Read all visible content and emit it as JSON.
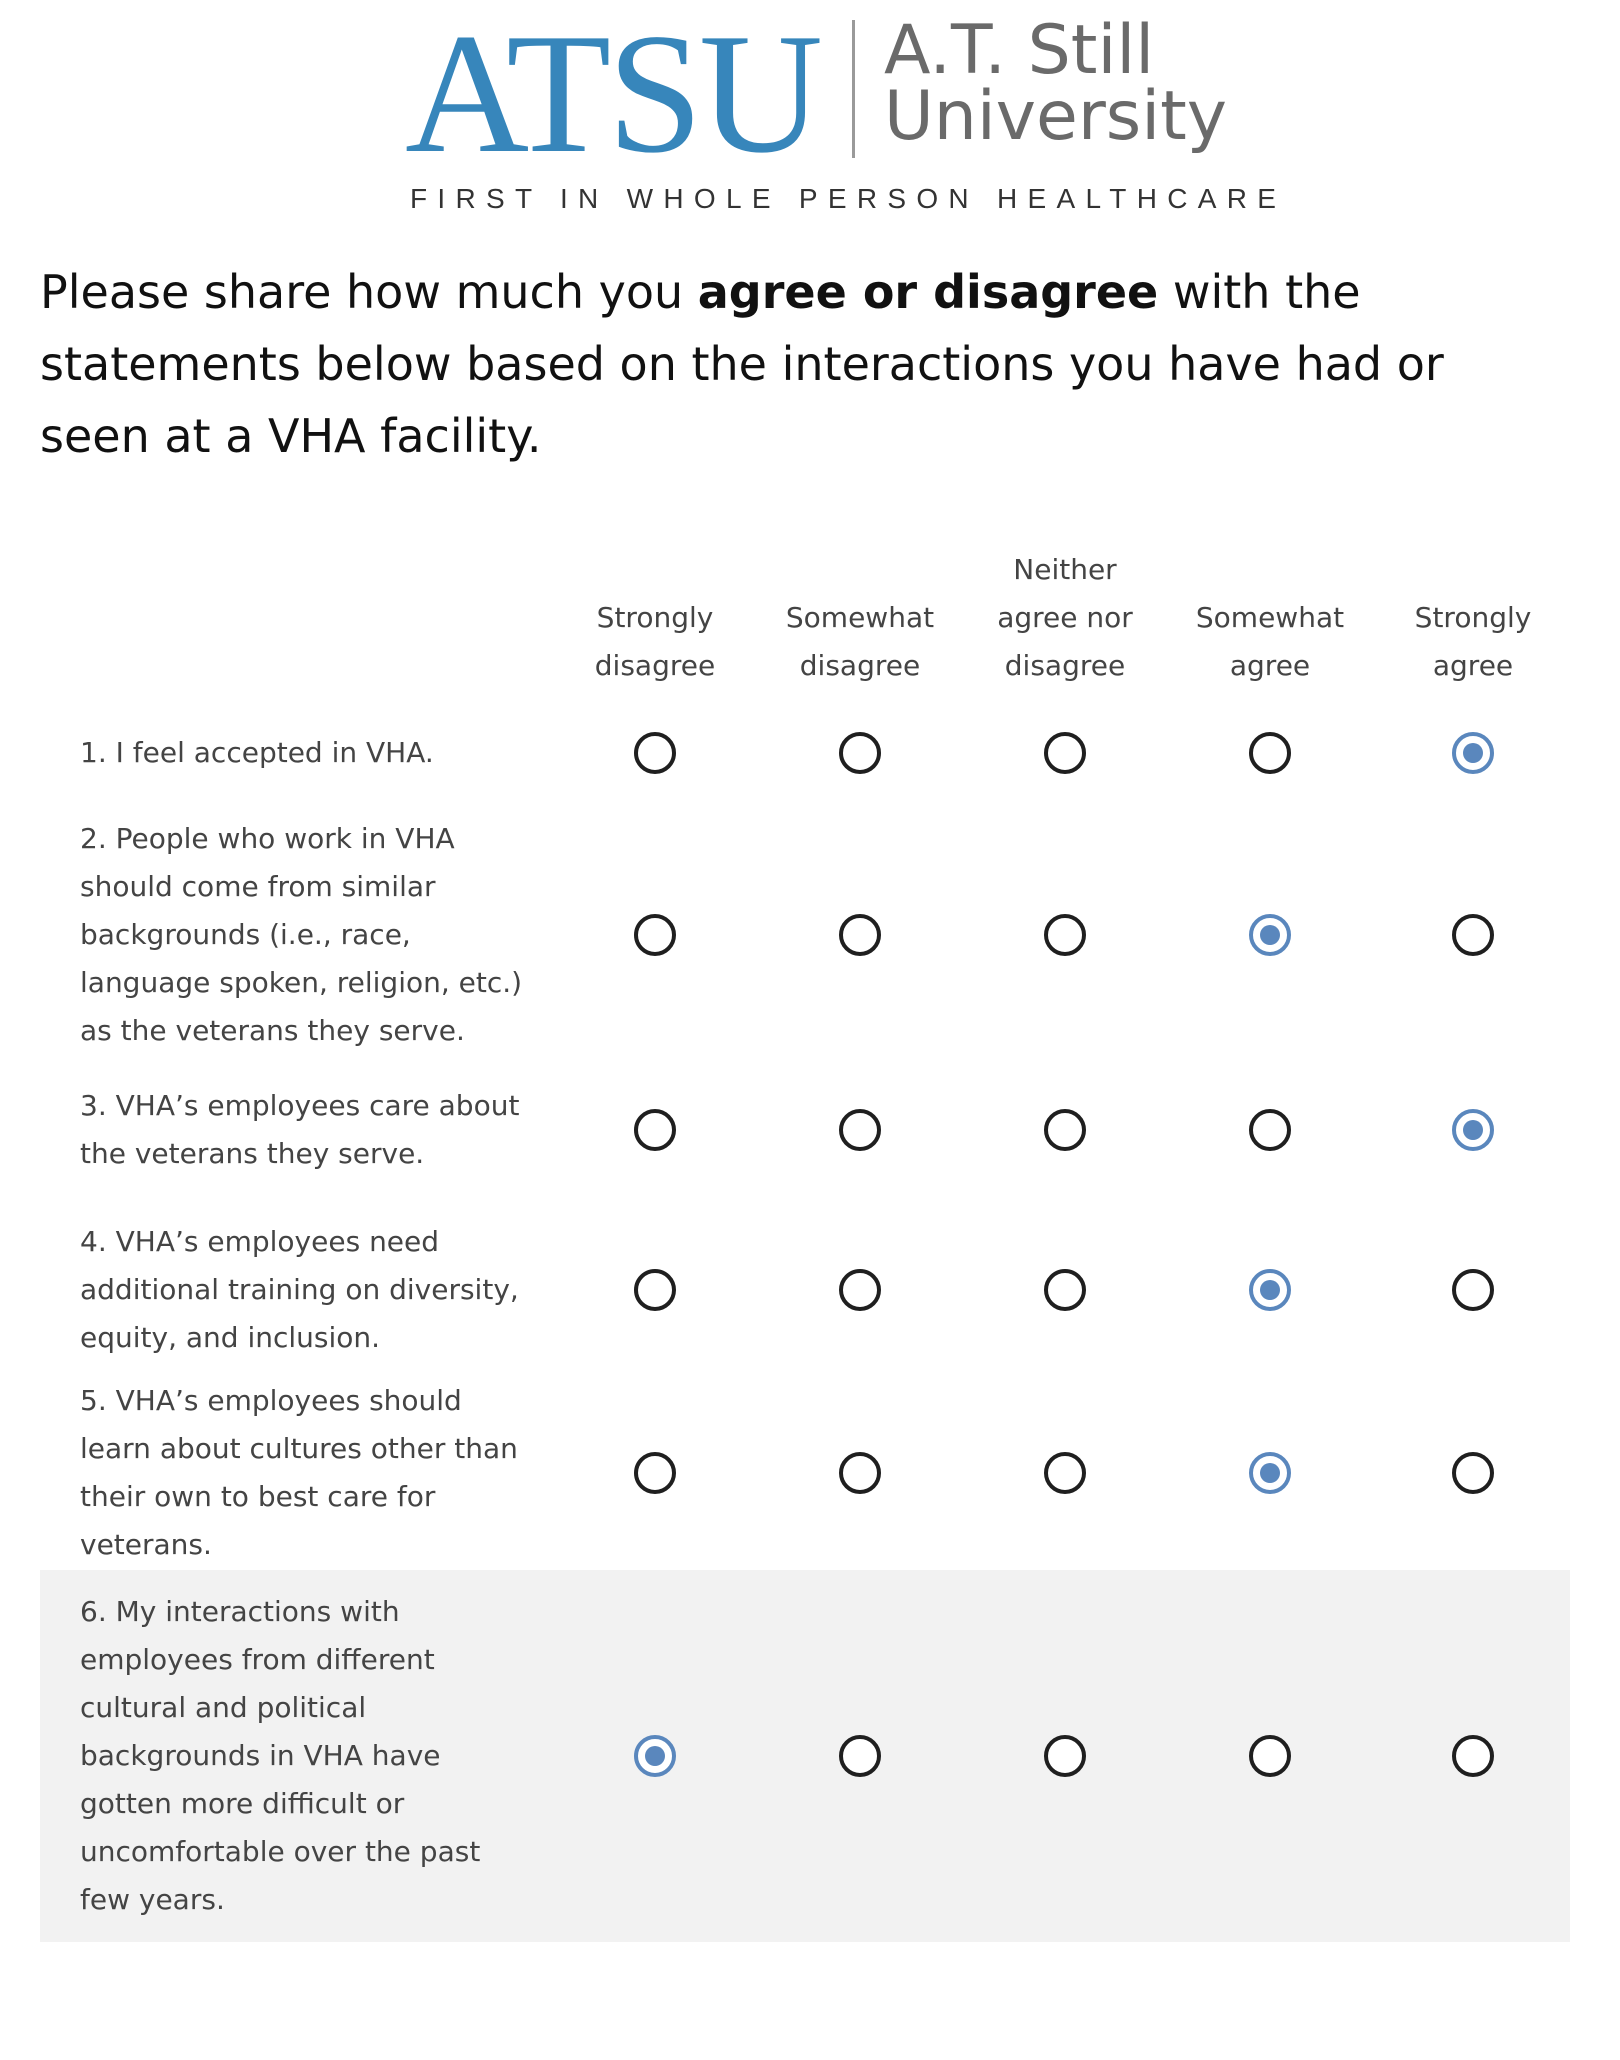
{
  "logo": {
    "mark": "ATSU",
    "name_line1": "A.T. Still",
    "name_line2": "University",
    "tagline": "FIRST IN WHOLE PERSON HEALTHCARE"
  },
  "instruction": {
    "before": "Please share how much you ",
    "bold": "agree or disagree",
    "after": " with the statements below based on the interactions you have had or seen at a VHA facility."
  },
  "columns": [
    {
      "line1": "Strongly",
      "line2": "disagree"
    },
    {
      "line1": "Somewhat",
      "line2": "disagree"
    },
    {
      "line1": "Neither",
      "line2": "agree nor",
      "line3": "disagree"
    },
    {
      "line1": "Somewhat",
      "line2": "agree"
    },
    {
      "line1": "Strongly",
      "line2": "agree"
    }
  ],
  "statements": [
    {
      "text": "1. I feel accepted in VHA.",
      "selected": "Strongly agree"
    },
    {
      "text": "2. People who work in VHA should come from similar backgrounds (i.e., race, language spoken, religion, etc.) as the veterans they serve.",
      "selected": "Somewhat agree"
    },
    {
      "text": "3. VHA’s employees care about the veterans they serve.",
      "selected": "Strongly agree"
    },
    {
      "text": "4. VHA’s employees need additional training on diversity, equity, and inclusion.",
      "selected": "Somewhat agree"
    },
    {
      "text": "5. VHA’s employees should learn about cultures other than their own to best care for veterans.",
      "selected": "Somewhat agree"
    },
    {
      "text": "6. My interactions with employees from different cultural and political backgrounds in VHA have gotten more difficult or uncomfortable over the past few years.",
      "selected": "Strongly disagree"
    }
  ],
  "colors": {
    "brand": "#3786bb",
    "radio_selected": "#5a87bd",
    "row_highlight": "#f2f2f2"
  }
}
